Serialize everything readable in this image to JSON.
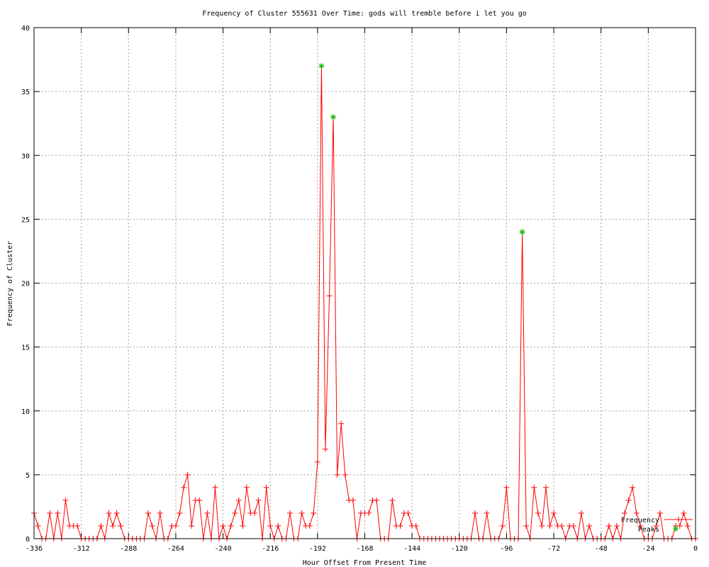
{
  "chart_data": {
    "type": "line",
    "title": "Frequency of Cluster 555631 Over Time: gods will tremble before i let you go",
    "xlabel": "Hour Offset From Present Time",
    "ylabel": "Frequency of Cluster",
    "xlim": [
      -336,
      0
    ],
    "ylim": [
      0,
      40
    ],
    "xticks": [
      -336,
      -312,
      -288,
      -264,
      -240,
      -216,
      -192,
      -168,
      -144,
      -120,
      -96,
      -72,
      -48,
      -24,
      0
    ],
    "yticks": [
      0,
      5,
      10,
      15,
      20,
      25,
      30,
      35,
      40
    ],
    "grid": true,
    "legend_position": "bottom-right",
    "series": [
      {
        "name": "Frequency",
        "color": "#ff0000",
        "marker": "plus",
        "x_start": -336,
        "x_step": 2,
        "values": [
          2,
          1,
          0,
          0,
          2,
          0,
          2,
          0,
          3,
          1,
          1,
          1,
          0,
          0,
          0,
          0,
          0,
          1,
          0,
          2,
          1,
          2,
          1,
          0,
          0,
          0,
          0,
          0,
          0,
          2,
          1,
          0,
          2,
          0,
          0,
          1,
          1,
          2,
          4,
          5,
          1,
          3,
          3,
          0,
          2,
          0,
          4,
          0,
          1,
          0,
          1,
          2,
          3,
          1,
          4,
          2,
          2,
          3,
          0,
          4,
          1,
          0,
          1,
          0,
          0,
          2,
          0,
          0,
          2,
          1,
          1,
          2,
          6,
          37,
          7,
          19,
          33,
          5,
          9,
          5,
          3,
          3,
          0,
          2,
          2,
          2,
          3,
          3,
          0,
          0,
          0,
          3,
          1,
          1,
          2,
          2,
          1,
          1,
          0,
          0,
          0,
          0,
          0,
          0,
          0,
          0,
          0,
          0,
          0,
          0,
          0,
          0,
          2,
          0,
          0,
          2,
          0,
          0,
          0,
          1,
          4,
          0,
          0,
          0,
          24,
          1,
          0,
          4,
          2,
          1,
          4,
          1,
          2,
          1,
          1,
          0,
          1,
          1,
          0,
          2,
          0,
          1,
          0,
          0,
          0,
          0,
          1,
          0,
          1,
          0,
          2,
          3,
          4,
          2,
          1,
          0,
          0,
          0,
          1,
          2,
          0,
          0,
          0,
          1,
          1,
          2,
          1,
          0,
          0
        ]
      },
      {
        "name": "Peaks",
        "color": "#00c000",
        "marker": "star",
        "points": [
          {
            "x": -190,
            "y": 37
          },
          {
            "x": -184,
            "y": 33
          },
          {
            "x": -88,
            "y": 24
          }
        ]
      }
    ]
  }
}
